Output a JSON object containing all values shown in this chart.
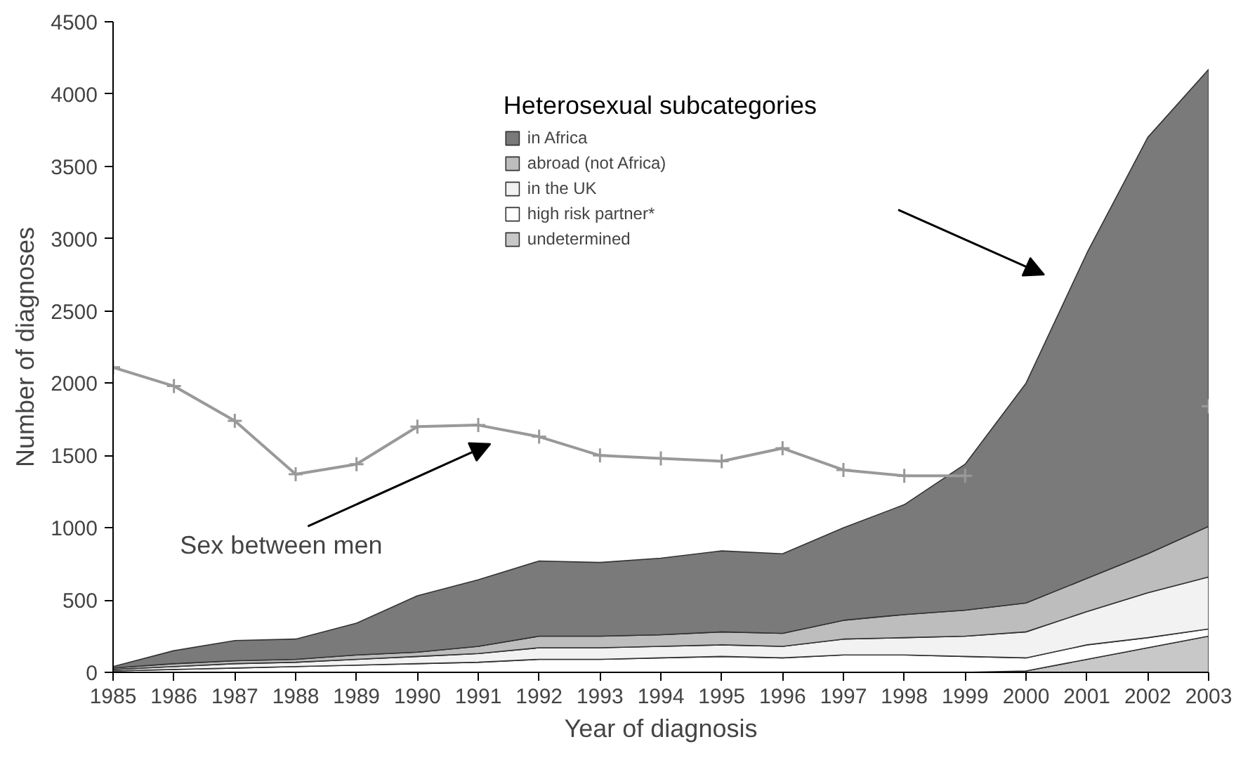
{
  "chart_data": {
    "type": "area",
    "stacked": true,
    "xlabel": "Year of diagnosis",
    "ylabel": "Number of diagnoses",
    "legend_title": "Heterosexual subcategories",
    "x": [
      1985,
      1986,
      1987,
      1988,
      1989,
      1990,
      1991,
      1992,
      1993,
      1994,
      1995,
      1996,
      1997,
      1998,
      1999,
      2000,
      2001,
      2002,
      2003
    ],
    "series": [
      {
        "name": "undetermined",
        "color": "#c8c8c8",
        "values": [
          0,
          0,
          0,
          0,
          0,
          0,
          0,
          0,
          0,
          0,
          0,
          0,
          0,
          0,
          0,
          10,
          90,
          170,
          250
        ]
      },
      {
        "name": "high risk partner*",
        "color": "#ffffff",
        "values": [
          10,
          20,
          30,
          40,
          50,
          60,
          70,
          90,
          90,
          100,
          110,
          100,
          120,
          120,
          110,
          90,
          100,
          70,
          50
        ]
      },
      {
        "name": "in the UK",
        "color": "#f2f2f2",
        "values": [
          10,
          20,
          30,
          30,
          40,
          50,
          60,
          80,
          80,
          80,
          80,
          80,
          110,
          120,
          140,
          180,
          230,
          310,
          360
        ]
      },
      {
        "name": "abroad (not Africa)",
        "color": "#bdbdbd",
        "values": [
          10,
          20,
          20,
          20,
          30,
          30,
          50,
          80,
          80,
          80,
          90,
          90,
          130,
          160,
          180,
          200,
          230,
          270,
          350
        ]
      },
      {
        "name": "in Africa",
        "color": "#7a7a7a",
        "values": [
          10,
          90,
          140,
          140,
          220,
          390,
          460,
          520,
          510,
          530,
          560,
          550,
          640,
          760,
          1010,
          1520,
          2250,
          2880,
          3160
        ]
      },
      {
        "type": "line",
        "color": "#999999",
        "marker": "cross",
        "values": [
          2110,
          1980,
          1740,
          1370,
          1440,
          1700,
          1710,
          1630,
          1500,
          1480,
          1460,
          1550,
          1400,
          1360,
          1360,
          null,
          null,
          null,
          1840
        ]
      }
    ],
    "annotations": [
      "Sex between men"
    ],
    "xlim": [
      1985,
      2003
    ],
    "xticks": [
      1985,
      1986,
      1987,
      1988,
      1989,
      1990,
      1991,
      1992,
      1993,
      1994,
      1995,
      1996,
      1997,
      1998,
      1999,
      2000,
      2001,
      2002,
      2003
    ],
    "ylim": [
      0,
      4500
    ],
    "yticks": [
      0,
      500,
      1000,
      1500,
      2000,
      2500,
      3000,
      3500,
      4000,
      4500
    ],
    "grid": false,
    "legend": "top"
  }
}
